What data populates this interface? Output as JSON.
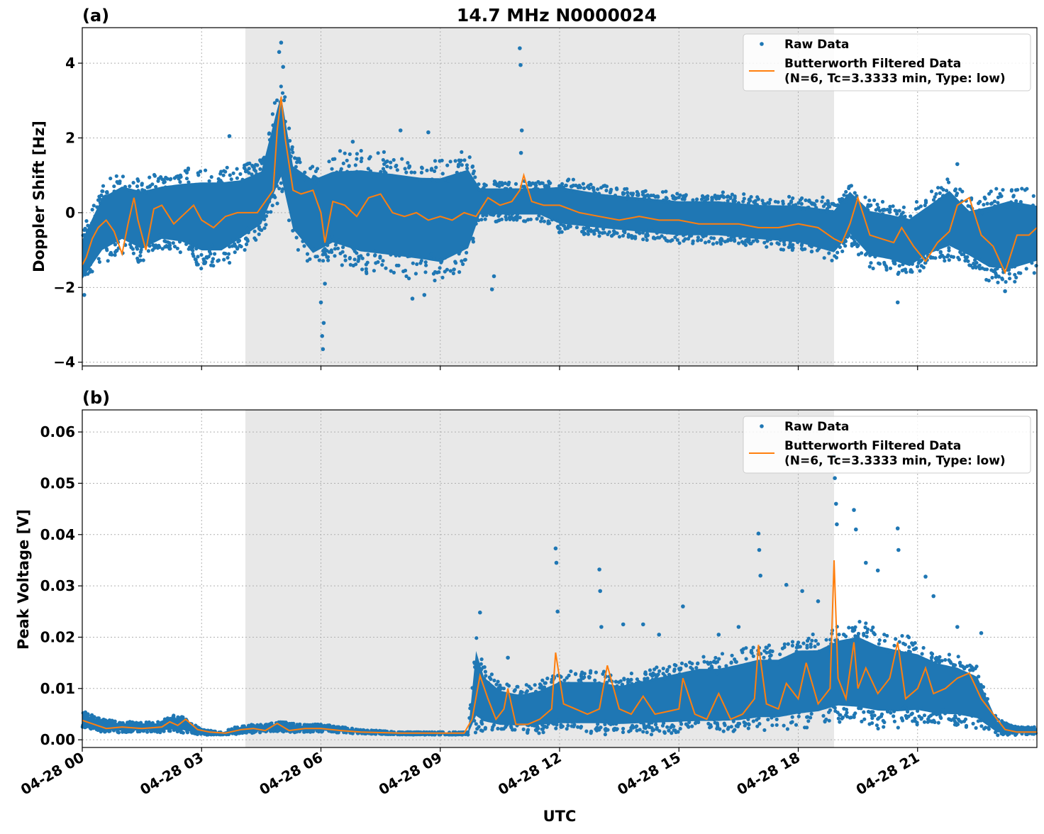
{
  "colors": {
    "raw": "#1f77b4",
    "filtered": "#ff7f0e",
    "shade": "#e8e8e8",
    "grid": "#b0b0b0"
  },
  "chart_data": [
    {
      "panel": "(a)",
      "type": "scatter",
      "title": "14.7 MHz N0000024",
      "xlabel": "",
      "ylabel": "Doppler Shift [Hz]",
      "xlim": [
        0,
        24
      ],
      "ylim": [
        -4.1,
        4.95
      ],
      "yticks": [
        -4,
        -2,
        0,
        2,
        4
      ],
      "ytick_labels": [
        "−4",
        "−2",
        "0",
        "2",
        "4"
      ],
      "xticks": [
        0,
        3,
        6,
        9,
        12,
        15,
        18,
        21
      ],
      "shaded_span": [
        4.1,
        18.9
      ],
      "grid": true,
      "legend_position": "top-right",
      "legend": [
        "Raw Data",
        "Butterworth Filtered Data",
        "(N=6, Tc=3.3333 min, Type: low)"
      ],
      "series": [
        {
          "name": "Raw Data",
          "kind": "scatter_band",
          "band": {
            "x": [
              0,
              0.5,
              1,
              1.5,
              2,
              2.5,
              3,
              3.5,
              4,
              4.5,
              4.9,
              5,
              5.3,
              5.8,
              6.3,
              7,
              7.8,
              8.5,
              9,
              9.7,
              10,
              10.5,
              11,
              11.5,
              12,
              13,
              14,
              15,
              16,
              17,
              18,
              18.9,
              19.3,
              19.8,
              20.3,
              20.8,
              21.2,
              21.8,
              22.3,
              22.8,
              23.3,
              24
            ],
            "lo": [
              -2.0,
              -1.3,
              -1.0,
              -1.3,
              -1.0,
              -1.1,
              -1.4,
              -1.4,
              -1.0,
              -0.6,
              0.3,
              0.5,
              -0.8,
              -1.5,
              -1.2,
              -1.5,
              -1.6,
              -1.7,
              -1.8,
              -1.4,
              -0.2,
              -0.2,
              -0.2,
              -0.2,
              -0.5,
              -0.6,
              -0.7,
              -0.8,
              -0.8,
              -0.9,
              -1.0,
              -1.3,
              -0.8,
              -1.4,
              -1.5,
              -1.7,
              -1.4,
              -1.2,
              -1.4,
              -1.8,
              -1.9,
              -1.6
            ],
            "hi": [
              -0.5,
              0.7,
              1.0,
              0.9,
              1.0,
              1.1,
              1.2,
              1.2,
              1.2,
              1.4,
              3.2,
              3.6,
              1.6,
              1.3,
              1.5,
              1.6,
              1.5,
              1.4,
              1.4,
              1.6,
              0.8,
              0.8,
              0.8,
              0.8,
              0.9,
              0.7,
              0.6,
              0.5,
              0.5,
              0.4,
              0.4,
              0.3,
              0.8,
              0.3,
              0.2,
              0.1,
              0.4,
              0.9,
              0.3,
              0.5,
              0.7,
              0.5
            ]
          },
          "outliers": [
            {
              "x": 5.0,
              "y": 4.55
            },
            {
              "x": 4.95,
              "y": 4.3
            },
            {
              "x": 5.05,
              "y": 3.9
            },
            {
              "x": 6.05,
              "y": -3.65
            },
            {
              "x": 6.03,
              "y": -3.3
            },
            {
              "x": 6.07,
              "y": -2.95
            },
            {
              "x": 6.0,
              "y": -2.4
            },
            {
              "x": 6.1,
              "y": -1.9
            },
            {
              "x": 11.0,
              "y": 4.4
            },
            {
              "x": 11.02,
              "y": 3.95
            },
            {
              "x": 11.05,
              "y": 2.2
            },
            {
              "x": 11.03,
              "y": 1.6
            },
            {
              "x": 10.3,
              "y": -2.05
            },
            {
              "x": 10.35,
              "y": -1.7
            },
            {
              "x": 8.3,
              "y": -2.3
            },
            {
              "x": 8.6,
              "y": -2.2
            },
            {
              "x": 8.0,
              "y": 2.2
            },
            {
              "x": 8.7,
              "y": 2.15
            },
            {
              "x": 3.7,
              "y": 2.05
            },
            {
              "x": 6.8,
              "y": 1.9
            },
            {
              "x": 20.5,
              "y": -2.4
            },
            {
              "x": 23.2,
              "y": -2.1
            },
            {
              "x": 22.0,
              "y": 1.3
            },
            {
              "x": 0.05,
              "y": -2.2
            }
          ]
        },
        {
          "name": "Butterworth Filtered Data",
          "kind": "line",
          "x": [
            0,
            0.1,
            0.25,
            0.4,
            0.6,
            0.8,
            1.0,
            1.15,
            1.3,
            1.4,
            1.6,
            1.8,
            2.0,
            2.3,
            2.5,
            2.8,
            3.0,
            3.3,
            3.6,
            3.9,
            4.1,
            4.4,
            4.6,
            4.8,
            4.9,
            5.0,
            5.1,
            5.3,
            5.5,
            5.8,
            6.0,
            6.1,
            6.3,
            6.6,
            6.9,
            7.2,
            7.5,
            7.8,
            8.1,
            8.4,
            8.7,
            9.0,
            9.3,
            9.6,
            9.9,
            10.2,
            10.5,
            10.8,
            11.0,
            11.1,
            11.3,
            11.6,
            12.0,
            12.5,
            13.0,
            13.5,
            14.0,
            14.5,
            15.0,
            15.5,
            16.0,
            16.5,
            17.0,
            17.5,
            18.0,
            18.5,
            18.9,
            19.1,
            19.3,
            19.5,
            19.8,
            20.1,
            20.4,
            20.6,
            20.9,
            21.2,
            21.5,
            21.8,
            22.0,
            22.3,
            22.6,
            22.9,
            23.2,
            23.5,
            23.8,
            24.0
          ],
          "y": [
            -1.4,
            -1.2,
            -0.7,
            -0.4,
            -0.2,
            -0.5,
            -1.1,
            -0.3,
            0.4,
            -0.2,
            -1.0,
            0.1,
            0.2,
            -0.3,
            -0.1,
            0.2,
            -0.2,
            -0.4,
            -0.1,
            0.0,
            0.0,
            0.0,
            0.3,
            0.6,
            2.2,
            3.1,
            2.0,
            0.6,
            0.5,
            0.6,
            0.0,
            -0.8,
            0.3,
            0.2,
            -0.1,
            0.4,
            0.5,
            0.0,
            -0.1,
            0.0,
            -0.2,
            -0.1,
            -0.2,
            0.0,
            -0.1,
            0.4,
            0.2,
            0.3,
            0.6,
            1.0,
            0.3,
            0.2,
            0.2,
            0.0,
            -0.1,
            -0.2,
            -0.1,
            -0.2,
            -0.2,
            -0.3,
            -0.3,
            -0.3,
            -0.4,
            -0.4,
            -0.3,
            -0.4,
            -0.7,
            -0.8,
            -0.3,
            0.4,
            -0.6,
            -0.7,
            -0.8,
            -0.4,
            -0.9,
            -1.3,
            -0.8,
            -0.5,
            0.2,
            0.4,
            -0.6,
            -0.9,
            -1.6,
            -0.6,
            -0.6,
            -0.4
          ]
        }
      ]
    },
    {
      "panel": "(b)",
      "type": "scatter",
      "title": "",
      "xlabel": "UTC",
      "ylabel": "Peak Voltage [V]",
      "xlim": [
        0,
        24
      ],
      "ylim": [
        -0.0015,
        0.0643
      ],
      "yticks": [
        0,
        0.01,
        0.02,
        0.03,
        0.04,
        0.05,
        0.06
      ],
      "ytick_labels": [
        "0.00",
        "0.01",
        "0.02",
        "0.03",
        "0.04",
        "0.05",
        "0.06"
      ],
      "xticks": [
        0,
        3,
        6,
        9,
        12,
        15,
        18,
        21
      ],
      "xtick_labels": [
        "04-28 00",
        "04-28 03",
        "04-28 06",
        "04-28 09",
        "04-28 12",
        "04-28 15",
        "04-28 18",
        "04-28 21"
      ],
      "shaded_span": [
        4.1,
        18.9
      ],
      "grid": true,
      "legend_position": "top-right",
      "legend": [
        "Raw Data",
        "Butterworth Filtered Data",
        "(N=6, Tc=3.3333 min, Type: low)"
      ],
      "series": [
        {
          "name": "Raw Data",
          "kind": "scatter_band",
          "band": {
            "x": [
              0,
              0.5,
              1,
              1.5,
              2,
              2.2,
              2.5,
              3,
              3.5,
              4,
              4.5,
              5,
              5.5,
              6,
              7,
              8,
              9,
              9.7,
              9.9,
              10.1,
              10.5,
              11,
              11.5,
              12,
              12.5,
              13,
              13.5,
              14,
              14.5,
              15,
              15.5,
              16,
              16.5,
              17,
              17.5,
              18,
              18.5,
              19,
              19.5,
              20,
              20.5,
              21,
              21.5,
              22,
              22.5,
              23,
              23.5,
              24
            ],
            "lo": [
              0.0025,
              0.0015,
              0.0015,
              0.0015,
              0.0015,
              0.0015,
              0.0015,
              0.001,
              0.001,
              0.0012,
              0.0015,
              0.0016,
              0.0015,
              0.0016,
              0.0012,
              0.001,
              0.001,
              0.001,
              0.002,
              0.0018,
              0.0015,
              0.0015,
              0.0015,
              0.0015,
              0.0015,
              0.0015,
              0.0015,
              0.0015,
              0.0015,
              0.0015,
              0.0015,
              0.0015,
              0.0015,
              0.002,
              0.002,
              0.0025,
              0.003,
              0.004,
              0.0035,
              0.003,
              0.003,
              0.0035,
              0.003,
              0.003,
              0.0025,
              0.001,
              0.001,
              0.0012
            ],
            "hi": [
              0.0055,
              0.004,
              0.0035,
              0.0035,
              0.0035,
              0.005,
              0.0045,
              0.002,
              0.0015,
              0.0028,
              0.003,
              0.0035,
              0.003,
              0.003,
              0.002,
              0.0015,
              0.0015,
              0.0015,
              0.02,
              0.014,
              0.011,
              0.01,
              0.011,
              0.013,
              0.013,
              0.013,
              0.012,
              0.013,
              0.014,
              0.015,
              0.016,
              0.016,
              0.017,
              0.018,
              0.018,
              0.02,
              0.02,
              0.022,
              0.023,
              0.021,
              0.02,
              0.019,
              0.017,
              0.016,
              0.014,
              0.004,
              0.0025,
              0.0025
            ]
          },
          "outliers": [
            {
              "x": 10.0,
              "y": 0.0248
            },
            {
              "x": 10.7,
              "y": 0.016
            },
            {
              "x": 11.9,
              "y": 0.0373
            },
            {
              "x": 11.92,
              "y": 0.0345
            },
            {
              "x": 11.95,
              "y": 0.025
            },
            {
              "x": 13.0,
              "y": 0.0332
            },
            {
              "x": 13.02,
              "y": 0.029
            },
            {
              "x": 13.05,
              "y": 0.022
            },
            {
              "x": 13.6,
              "y": 0.0225
            },
            {
              "x": 14.1,
              "y": 0.0225
            },
            {
              "x": 14.5,
              "y": 0.0205
            },
            {
              "x": 15.1,
              "y": 0.026
            },
            {
              "x": 16.0,
              "y": 0.0205
            },
            {
              "x": 16.5,
              "y": 0.022
            },
            {
              "x": 17.0,
              "y": 0.0402
            },
            {
              "x": 17.02,
              "y": 0.037
            },
            {
              "x": 17.05,
              "y": 0.032
            },
            {
              "x": 17.7,
              "y": 0.0302
            },
            {
              "x": 18.1,
              "y": 0.029
            },
            {
              "x": 18.5,
              "y": 0.027
            },
            {
              "x": 18.9,
              "y": 0.0553
            },
            {
              "x": 18.92,
              "y": 0.051
            },
            {
              "x": 18.95,
              "y": 0.046
            },
            {
              "x": 18.97,
              "y": 0.042
            },
            {
              "x": 19.4,
              "y": 0.0448
            },
            {
              "x": 19.45,
              "y": 0.041
            },
            {
              "x": 19.7,
              "y": 0.0345
            },
            {
              "x": 20.0,
              "y": 0.033
            },
            {
              "x": 20.5,
              "y": 0.0412
            },
            {
              "x": 20.52,
              "y": 0.037
            },
            {
              "x": 21.2,
              "y": 0.0318
            },
            {
              "x": 21.4,
              "y": 0.028
            },
            {
              "x": 22.6,
              "y": 0.0208
            },
            {
              "x": 22.0,
              "y": 0.022
            }
          ]
        },
        {
          "name": "Butterworth Filtered Data",
          "kind": "line",
          "x": [
            0,
            0.3,
            0.6,
            1.0,
            1.5,
            2.0,
            2.2,
            2.4,
            2.6,
            2.9,
            3.2,
            3.6,
            4.0,
            4.3,
            4.6,
            4.9,
            5.2,
            5.6,
            6.0,
            6.5,
            7.0,
            7.5,
            8.0,
            8.5,
            9.0,
            9.6,
            9.8,
            10.0,
            10.2,
            10.4,
            10.6,
            10.7,
            10.9,
            11.2,
            11.5,
            11.8,
            11.9,
            12.1,
            12.4,
            12.7,
            13.0,
            13.2,
            13.5,
            13.8,
            14.1,
            14.4,
            14.7,
            15.0,
            15.1,
            15.4,
            15.7,
            16.0,
            16.3,
            16.6,
            16.9,
            17.0,
            17.2,
            17.5,
            17.7,
            18.0,
            18.2,
            18.5,
            18.8,
            18.9,
            19.0,
            19.2,
            19.4,
            19.5,
            19.7,
            20.0,
            20.3,
            20.5,
            20.7,
            21.0,
            21.2,
            21.4,
            21.7,
            22.0,
            22.3,
            22.6,
            22.9,
            23.2,
            23.5,
            24.0
          ],
          "y": [
            0.0038,
            0.003,
            0.0022,
            0.0025,
            0.0022,
            0.0025,
            0.0035,
            0.0028,
            0.004,
            0.002,
            0.0015,
            0.0013,
            0.002,
            0.0022,
            0.0018,
            0.0032,
            0.0018,
            0.0022,
            0.0022,
            0.0018,
            0.0015,
            0.0014,
            0.0013,
            0.0013,
            0.0013,
            0.0013,
            0.004,
            0.0125,
            0.008,
            0.004,
            0.006,
            0.01,
            0.003,
            0.003,
            0.004,
            0.006,
            0.017,
            0.007,
            0.006,
            0.005,
            0.006,
            0.0145,
            0.006,
            0.005,
            0.0085,
            0.005,
            0.0055,
            0.006,
            0.012,
            0.005,
            0.004,
            0.009,
            0.004,
            0.005,
            0.008,
            0.0185,
            0.007,
            0.006,
            0.011,
            0.008,
            0.015,
            0.007,
            0.01,
            0.035,
            0.012,
            0.008,
            0.019,
            0.01,
            0.014,
            0.009,
            0.012,
            0.019,
            0.008,
            0.01,
            0.014,
            0.009,
            0.01,
            0.012,
            0.013,
            0.008,
            0.005,
            0.002,
            0.0015,
            0.0015
          ]
        }
      ]
    }
  ]
}
